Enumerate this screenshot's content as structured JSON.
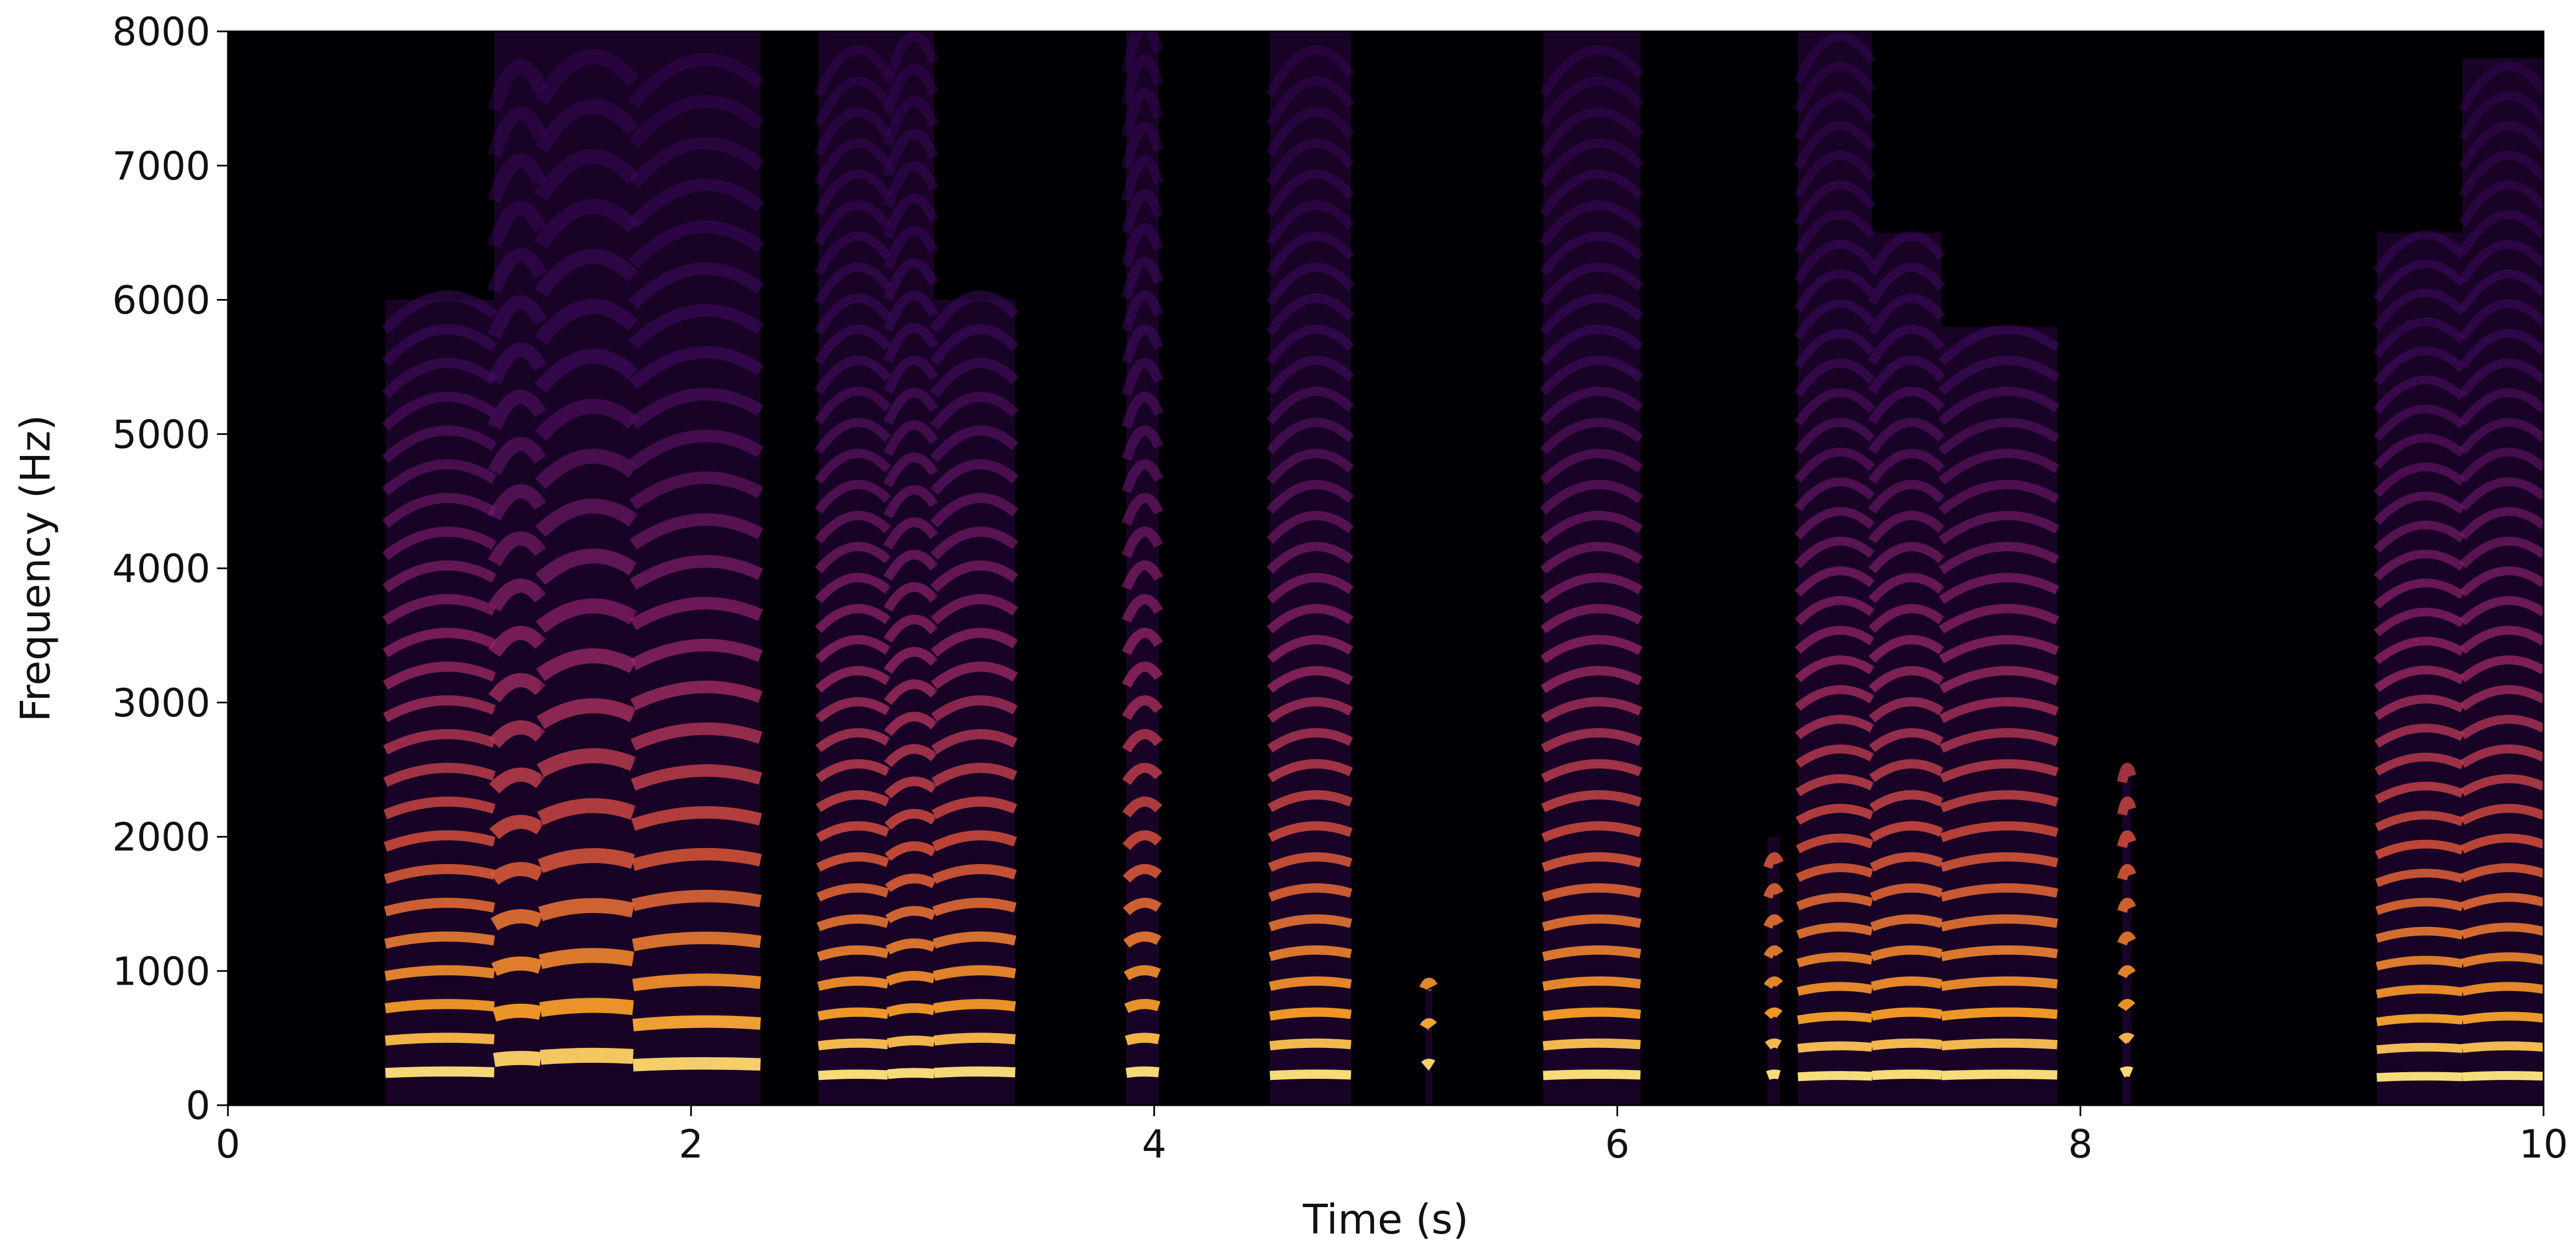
{
  "chart_data": {
    "type": "spectrogram",
    "xlabel": "Time (s)",
    "ylabel": "Frequency (Hz)",
    "xlim": [
      0,
      10
    ],
    "ylim": [
      0,
      8000
    ],
    "xticks": [
      0,
      2,
      4,
      6,
      8,
      10
    ],
    "yticks": [
      0,
      1000,
      2000,
      3000,
      4000,
      5000,
      6000,
      7000,
      8000
    ],
    "background": "#000004",
    "segments": [
      {
        "start": 0.68,
        "end": 1.15,
        "top": 6000,
        "f0": 250
      },
      {
        "start": 1.15,
        "end": 1.35,
        "top": 8000,
        "f0": 350
      },
      {
        "start": 1.35,
        "end": 1.75,
        "top": 8000,
        "f0": 370
      },
      {
        "start": 1.75,
        "end": 2.3,
        "top": 8000,
        "f0": 310
      },
      {
        "start": 2.55,
        "end": 2.85,
        "top": 8000,
        "f0": 230
      },
      {
        "start": 2.85,
        "end": 3.05,
        "top": 8000,
        "f0": 240
      },
      {
        "start": 3.05,
        "end": 3.4,
        "top": 6000,
        "f0": 250
      },
      {
        "start": 3.88,
        "end": 4.02,
        "top": 8000,
        "f0": 250
      },
      {
        "start": 4.5,
        "end": 4.85,
        "top": 8000,
        "f0": 230
      },
      {
        "start": 5.17,
        "end": 5.2,
        "top": 900,
        "f0": 300
      },
      {
        "start": 5.68,
        "end": 6.1,
        "top": 8000,
        "f0": 230
      },
      {
        "start": 6.65,
        "end": 6.7,
        "top": 2000,
        "f0": 230
      },
      {
        "start": 6.78,
        "end": 7.1,
        "top": 8000,
        "f0": 220
      },
      {
        "start": 7.1,
        "end": 7.4,
        "top": 6500,
        "f0": 230
      },
      {
        "start": 7.4,
        "end": 7.9,
        "top": 5800,
        "f0": 230
      },
      {
        "start": 8.18,
        "end": 8.22,
        "top": 2500,
        "f0": 250
      },
      {
        "start": 9.28,
        "end": 9.65,
        "top": 6500,
        "f0": 215
      },
      {
        "start": 9.65,
        "end": 10,
        "top": 7800,
        "f0": 220
      }
    ]
  }
}
